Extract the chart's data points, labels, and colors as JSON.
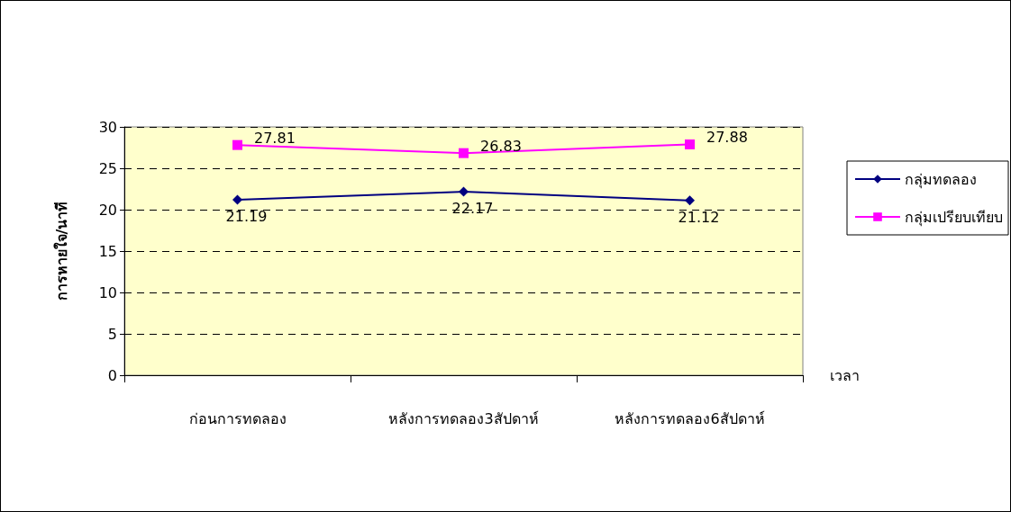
{
  "chart_data": {
    "type": "line",
    "xlabel": "เวลา",
    "ylabel": "การหายใจ/นาที",
    "categories": [
      "ก่อนการทดลอง",
      "หลังการทดลอง3สัปดาห์",
      "หลังการทดลอง6สัปดาห์"
    ],
    "series": [
      {
        "name": "กลุ่มทดลอง",
        "color": "#000080",
        "marker": "diamond",
        "values": [
          21.19,
          22.17,
          21.12
        ]
      },
      {
        "name": "กลุ่มเปรียบเทียบ",
        "color": "#ff00ff",
        "marker": "square",
        "values": [
          27.81,
          26.83,
          27.88
        ]
      }
    ],
    "ylim": [
      0,
      30
    ],
    "yticks": [
      0,
      5,
      10,
      15,
      20,
      25,
      30
    ],
    "grid": "y",
    "legend": "right",
    "data_labels": true,
    "line_style": "solid"
  }
}
